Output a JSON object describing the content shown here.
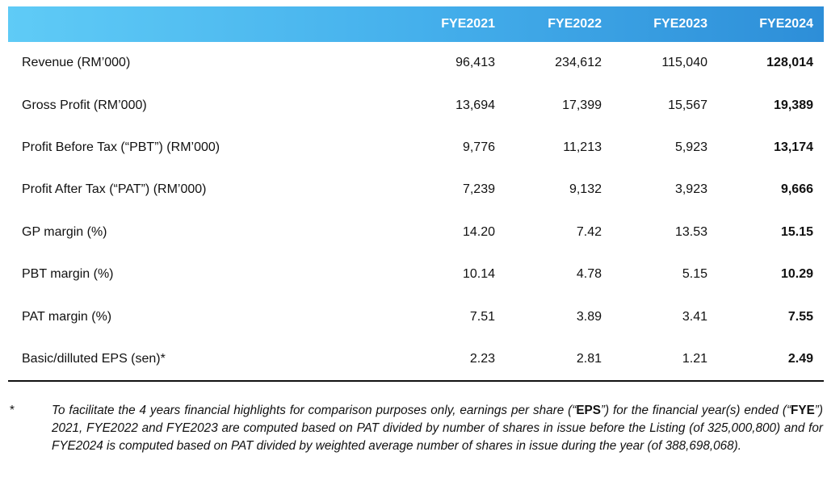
{
  "table": {
    "header": [
      "",
      "FYE2021",
      "FYE2022",
      "FYE2023",
      "FYE2024"
    ],
    "rows": [
      [
        "Revenue (RM’000)",
        "96,413",
        "234,612",
        "115,040",
        "128,014"
      ],
      [
        "Gross Profit (RM’000)",
        "13,694",
        "17,399",
        "15,567",
        "19,389"
      ],
      [
        "Profit Before Tax (“PBT”) (RM’000)",
        "9,776",
        "11,213",
        "5,923",
        "13,174"
      ],
      [
        "Profit After Tax (“PAT”) (RM’000)",
        "7,239",
        "9,132",
        "3,923",
        "9,666"
      ],
      [
        "GP margin (%)",
        "14.20",
        "7.42",
        "13.53",
        "15.15"
      ],
      [
        "PBT margin (%)",
        "10.14",
        "4.78",
        "5.15",
        "10.29"
      ],
      [
        "PAT margin (%)",
        "7.51",
        "3.89",
        "3.41",
        "7.55"
      ],
      [
        "Basic/dilluted EPS (sen)*",
        "2.23",
        "2.81",
        "1.21",
        "2.49"
      ]
    ]
  },
  "footnote": {
    "marker": "*",
    "parts": [
      {
        "text": "To facilitate the 4 years financial highlights for comparison purposes only, earnings per share (“",
        "bold": false
      },
      {
        "text": "EPS",
        "bold": true
      },
      {
        "text": "”) for the financial year(s) ended (“",
        "bold": false
      },
      {
        "text": "FYE",
        "bold": true
      },
      {
        "text": "”) 2021, FYE2022 and FYE2023 are computed based on PAT divided by number of shares in issue before the Listing (of 325,000,800) and for FYE2024 is computed based on PAT divided by weighted average number of shares in issue during the year (of 388,698,068).",
        "bold": false
      }
    ]
  }
}
